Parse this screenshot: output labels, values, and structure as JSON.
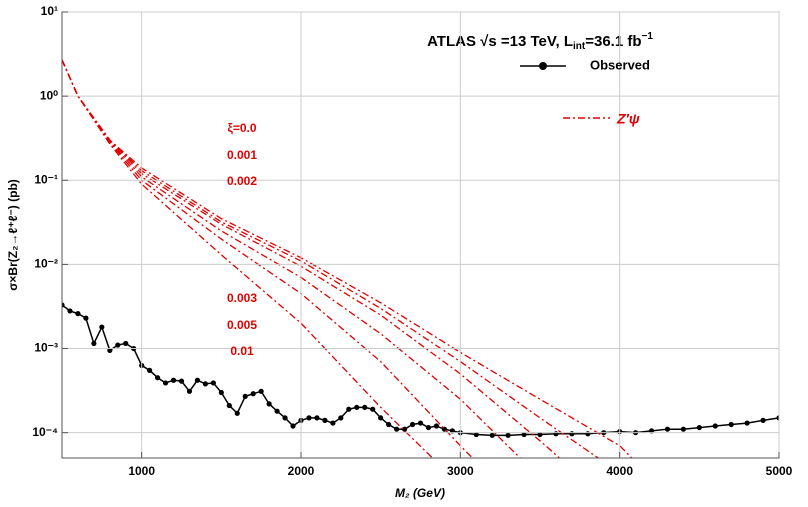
{
  "chart_data": {
    "type": "line",
    "title_parts": [
      "ATLAS √s =13 TeV, L",
      "int",
      "=36.1 fb",
      "−1"
    ],
    "xlabel": "M₂ (GeV)",
    "ylabel": "σ×Br(Z₂→ℓ⁺ℓ⁻) (pb)",
    "xlim": [
      500,
      5000
    ],
    "ylim": [
      5e-05,
      10
    ],
    "log_y": true,
    "grid": true,
    "xticks": [
      1000,
      2000,
      3000,
      4000,
      5000
    ],
    "yticks": [
      {
        "value": 0.0001,
        "label": "10⁻⁴"
      },
      {
        "value": 0.001,
        "label": "10⁻³"
      },
      {
        "value": 0.01,
        "label": "10⁻²"
      },
      {
        "value": 0.1,
        "label": "10⁻¹"
      },
      {
        "value": 1,
        "label": "10⁰"
      },
      {
        "value": 10,
        "label": "10¹"
      }
    ],
    "dashed_legend": "Z′ψ",
    "series": [
      {
        "name": "Observed",
        "color": "#000000",
        "style": "solid-markers",
        "x": [
          500,
          550,
          600,
          650,
          700,
          750,
          800,
          850,
          900,
          950,
          1000,
          1050,
          1100,
          1150,
          1200,
          1250,
          1300,
          1350,
          1400,
          1450,
          1500,
          1550,
          1600,
          1650,
          1700,
          1750,
          1800,
          1850,
          1900,
          1950,
          2000,
          2050,
          2100,
          2150,
          2200,
          2250,
          2300,
          2350,
          2400,
          2450,
          2500,
          2550,
          2600,
          2650,
          2700,
          2750,
          2800,
          2850,
          2900,
          2950,
          3000,
          3100,
          3200,
          3300,
          3400,
          3500,
          3600,
          3700,
          3800,
          3900,
          4000,
          4100,
          4200,
          4300,
          4400,
          4500,
          4600,
          4700,
          4800,
          4900,
          5000
        ],
        "values": [
          0.0033,
          0.0028,
          0.0026,
          0.0023,
          0.00115,
          0.0018,
          0.00095,
          0.0011,
          0.00115,
          0.001,
          0.00063,
          0.00055,
          0.00045,
          0.00039,
          0.00042,
          0.00041,
          0.00031,
          0.00042,
          0.00038,
          0.00039,
          0.0003,
          0.00021,
          0.00017,
          0.00027,
          0.00029,
          0.00031,
          0.00022,
          0.00018,
          0.00015,
          0.00012,
          0.00014,
          0.00015,
          0.00015,
          0.00014,
          0.00013,
          0.00015,
          0.00019,
          0.0002,
          0.0002,
          0.00019,
          0.00015,
          0.000125,
          0.00011,
          0.00011,
          0.000125,
          0.00013,
          0.000115,
          0.00012,
          0.00011,
          0.000105,
          0.0001,
          9.5e-05,
          9.3e-05,
          9.3e-05,
          9.5e-05,
          9.5e-05,
          9.7e-05,
          9.7e-05,
          9.7e-05,
          0.0001,
          0.000103,
          0.0001,
          0.000105,
          0.00011,
          0.00011,
          0.000115,
          0.00012,
          0.000125,
          0.00013,
          0.00014,
          0.00015
        ]
      },
      {
        "name": "ξ=0.0",
        "color": "#e00000",
        "style": "dashdot",
        "x": [
          500,
          600,
          800,
          1000,
          1500,
          2000,
          2500,
          3000,
          3500,
          4000,
          4100
        ],
        "values": [
          2.7,
          1.0,
          0.3,
          0.14,
          0.035,
          0.012,
          0.0035,
          0.0009,
          0.00025,
          7e-05,
          4.5e-05
        ]
      },
      {
        "name": "0.001",
        "color": "#e00000",
        "style": "dashdot",
        "x": [
          500,
          600,
          800,
          1000,
          1500,
          2000,
          2500,
          3000,
          3500,
          3900
        ],
        "values": [
          2.7,
          1.0,
          0.3,
          0.13,
          0.032,
          0.011,
          0.003,
          0.0007,
          0.00015,
          4.5e-05
        ]
      },
      {
        "name": "0.002",
        "color": "#e00000",
        "style": "dashdot",
        "x": [
          500,
          600,
          800,
          1000,
          1500,
          2000,
          2500,
          3000,
          3500,
          3650
        ],
        "values": [
          2.7,
          1.0,
          0.3,
          0.12,
          0.03,
          0.0095,
          0.0025,
          0.0005,
          8e-05,
          4.5e-05
        ]
      },
      {
        "name": "0.003",
        "color": "#e00000",
        "style": "dashdot",
        "x": [
          500,
          600,
          800,
          1000,
          1500,
          2000,
          2500,
          3000,
          3400
        ],
        "values": [
          2.7,
          1.0,
          0.29,
          0.11,
          0.025,
          0.007,
          0.0015,
          0.00025,
          4.5e-05
        ]
      },
      {
        "name": "0.005",
        "color": "#e00000",
        "style": "dashdot",
        "x": [
          500,
          600,
          800,
          1000,
          1500,
          2000,
          2500,
          3000,
          3100
        ],
        "values": [
          2.7,
          1.0,
          0.28,
          0.1,
          0.02,
          0.0045,
          0.0007,
          7e-05,
          4.5e-05
        ]
      },
      {
        "name": "0.01",
        "color": "#e00000",
        "style": "dashdot",
        "x": [
          500,
          600,
          800,
          1000,
          1500,
          2000,
          2500,
          2850
        ],
        "values": [
          2.7,
          1.0,
          0.27,
          0.09,
          0.013,
          0.002,
          0.0002,
          4.5e-05
        ]
      }
    ]
  }
}
